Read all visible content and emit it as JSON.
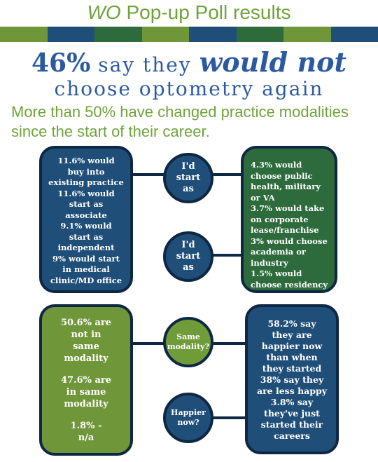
{
  "header": {
    "title_italic": "WO",
    "title_rest": " Pop-up Poll results",
    "stripe_colors": [
      "#70963a",
      "#1f4e79",
      "#2e6b3c",
      "#70963a",
      "#1f4e79",
      "#2e6b3c",
      "#70963a",
      "#1f4e79"
    ]
  },
  "headline": {
    "pct": "46%",
    "mid": " say they ",
    "emph": "would not",
    "line2": "choose optometry again"
  },
  "subheadline": "More than 50% have changed practice modalities since the start of their career.",
  "top_left_box": {
    "lines": [
      "11.6% would",
      "buy into",
      "existing practice",
      "11.6% would",
      "start as",
      "associate",
      "9.1% would",
      "start as",
      "independent",
      "9% would start",
      "in medical",
      "clinic/MD office"
    ]
  },
  "circle_start_1": {
    "line1": "I'd",
    "line2": "start",
    "line3": "as"
  },
  "circle_start_2": {
    "line1": "I'd",
    "line2": "start",
    "line3": "as"
  },
  "top_right_box": {
    "lines": [
      "4.3% would",
      "choose public",
      "health, military",
      "or VA",
      "3.7% would take",
      "on corporate",
      "lease/franchise",
      "3% would choose",
      "academia or",
      "industry",
      "1.5% would",
      "choose residency"
    ]
  },
  "bottom_left_box": {
    "p1": [
      "50.6% are",
      "not in",
      "same",
      "modality"
    ],
    "p2": [
      "47.6% are",
      "in same",
      "modality"
    ],
    "p3": [
      "1.8% -",
      "n/a"
    ]
  },
  "circle_same": {
    "line1": "Same",
    "line2": "modality?"
  },
  "circle_happier": {
    "line1": "Happier",
    "line2": "now?"
  },
  "bottom_right_box": {
    "lines": [
      "58.2% say",
      "they are",
      "happier now",
      "than when",
      "they started",
      "38% say they",
      "are less happy",
      "3.8% say",
      "they've just",
      "started their",
      "careers"
    ]
  }
}
